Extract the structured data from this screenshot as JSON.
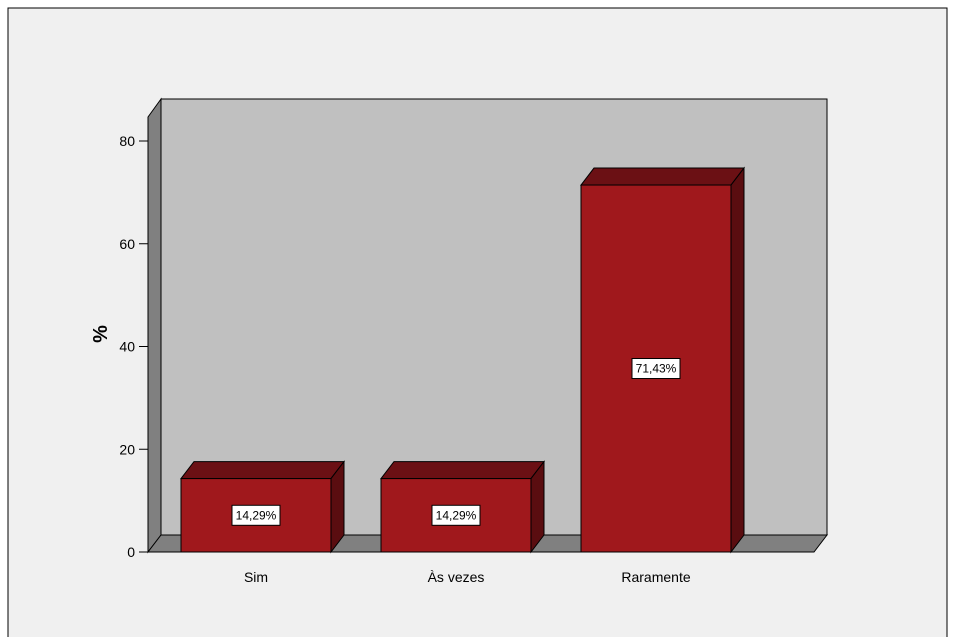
{
  "chart_data": {
    "type": "bar",
    "title": "",
    "xlabel": "",
    "ylabel": "%",
    "categories": [
      "Sim",
      "Às vezes",
      "Raramente"
    ],
    "values": [
      14.29,
      14.29,
      71.43
    ],
    "data_labels": [
      "14,29%",
      "14,29%",
      "71,43%"
    ],
    "ylim": [
      0,
      80
    ],
    "yticks": [
      0,
      20,
      40,
      60,
      80
    ],
    "ytick_labels": [
      "0",
      "20",
      "40",
      "60",
      "80"
    ],
    "grid": false,
    "legend": "none",
    "style": "3d-bar",
    "colors": {
      "bar_front": "#a0181c",
      "bar_top": "#6b1014",
      "bar_side": "#5a0d10",
      "back_wall": "#c0c0c0",
      "left_wall": "#808080",
      "floor": "#808080",
      "background": "#f0f0f0"
    }
  }
}
